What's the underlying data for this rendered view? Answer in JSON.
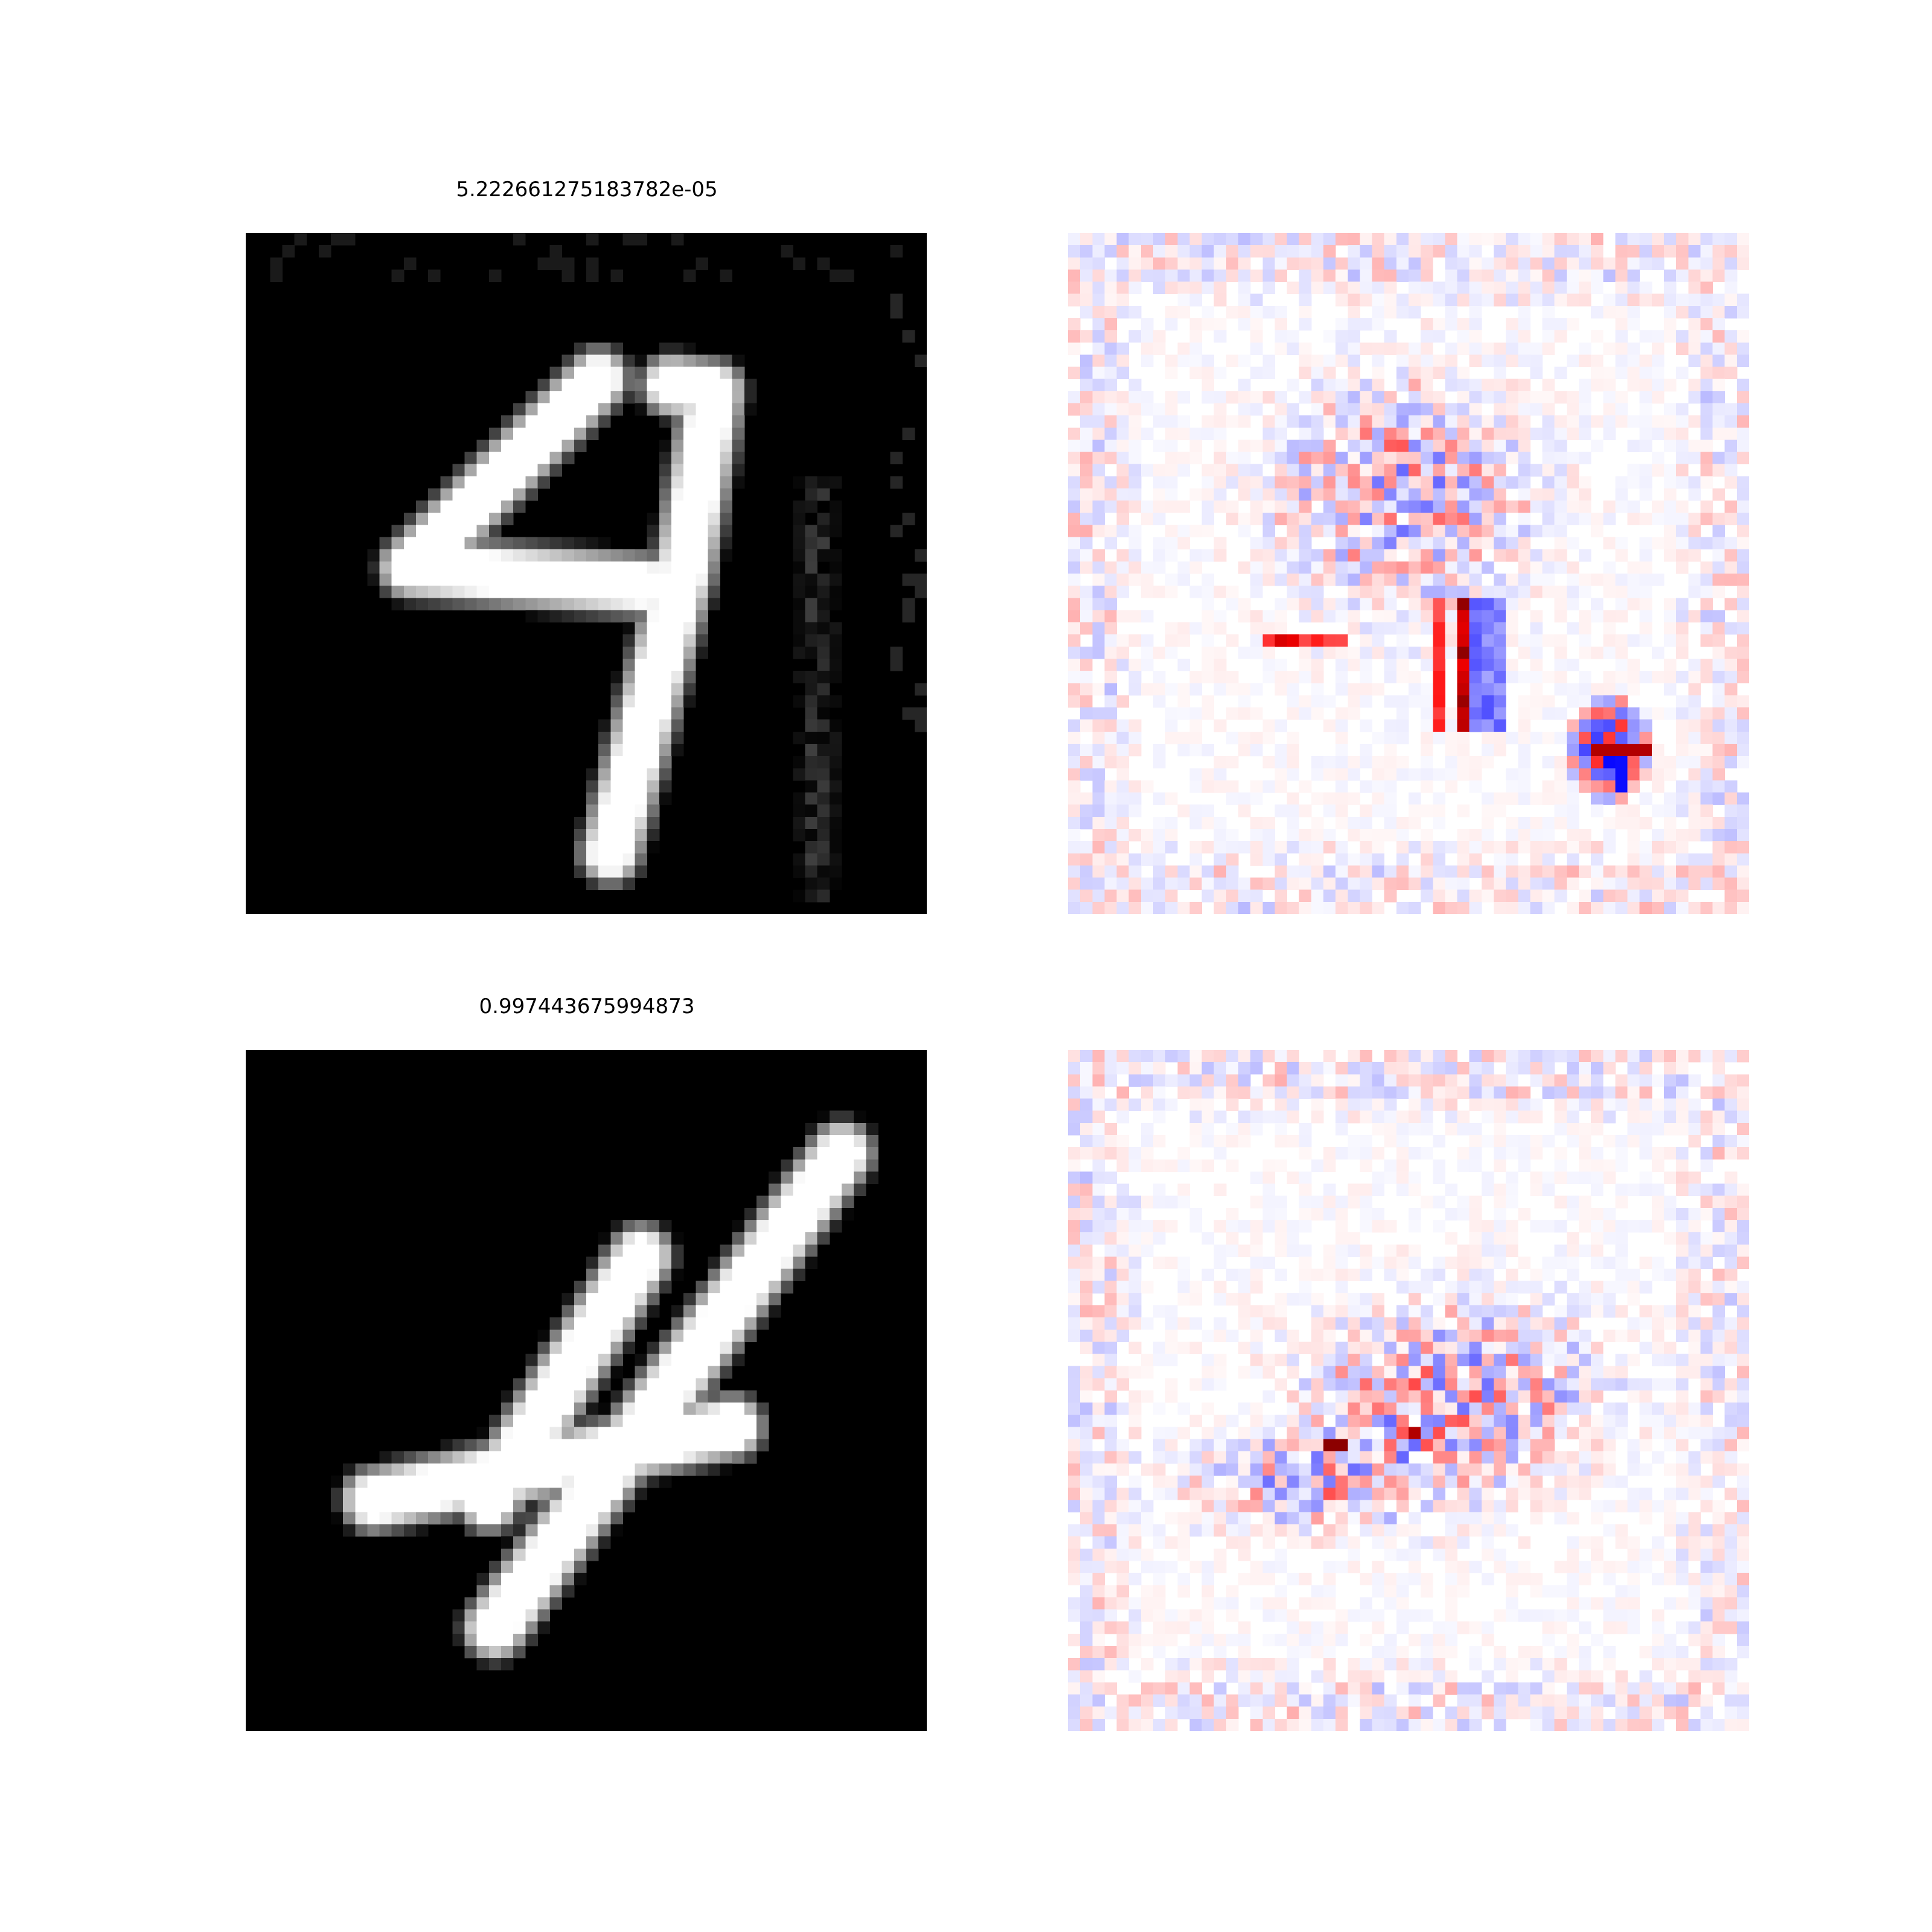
{
  "figure": {
    "rows": [
      {
        "title": "5.222661275183782e-05"
      },
      {
        "title": "0.997443675994873"
      }
    ]
  },
  "colors": {
    "background": "#ffffff",
    "image_cmap": "gray",
    "attribution_cmap": "bwr",
    "positive": "#ff0000",
    "negative": "#0000ff"
  },
  "chart_data": [
    {
      "type": "heatmap",
      "subplot": "row1-input-image",
      "title": "5.222661275183782e-05",
      "grid": [
        56,
        56
      ],
      "colormap": "gray",
      "axes": "off",
      "content": "handwritten digit 4"
    },
    {
      "type": "heatmap",
      "subplot": "row1-attribution-map",
      "title": "",
      "grid": [
        56,
        56
      ],
      "colormap": "bwr",
      "axes": "off"
    },
    {
      "type": "heatmap",
      "subplot": "row2-input-image",
      "title": "0.997443675994873",
      "grid": [
        56,
        56
      ],
      "colormap": "gray",
      "axes": "off",
      "content": "handwritten digit 4"
    },
    {
      "type": "heatmap",
      "subplot": "row2-attribution-map",
      "title": "",
      "grid": [
        56,
        56
      ],
      "colormap": "bwr",
      "axes": "off"
    }
  ]
}
